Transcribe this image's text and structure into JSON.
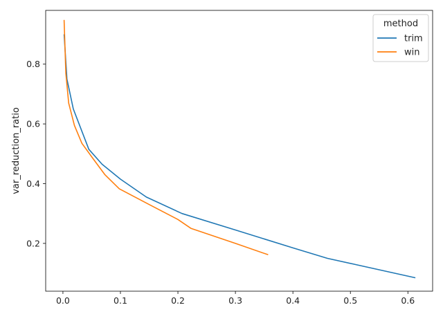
{
  "chart_data": {
    "type": "line",
    "title": "",
    "xlabel": "",
    "ylabel": "var_reduction_ratio",
    "xlim": [
      -0.03,
      0.643
    ],
    "ylim": [
      0.04,
      0.98
    ],
    "x_ticks": [
      0.0,
      0.1,
      0.2,
      0.3,
      0.4,
      0.5,
      0.6
    ],
    "x_tick_labels": [
      "0.0",
      "0.1",
      "0.2",
      "0.3",
      "0.4",
      "0.5",
      "0.6"
    ],
    "y_ticks": [
      0.2,
      0.4,
      0.6,
      0.8
    ],
    "y_tick_labels": [
      "0.2",
      "0.4",
      "0.6",
      "0.8"
    ],
    "grid": false,
    "legend": {
      "title": "method",
      "position": "top-right"
    },
    "series": [
      {
        "name": "trim",
        "color": "#1f77b4",
        "x": [
          0.002,
          0.007,
          0.018,
          0.045,
          0.068,
          0.1,
          0.145,
          0.207,
          0.3,
          0.4,
          0.46,
          0.613
        ],
        "y": [
          0.9,
          0.75,
          0.65,
          0.515,
          0.465,
          0.415,
          0.355,
          0.3,
          0.245,
          0.185,
          0.15,
          0.085
        ]
      },
      {
        "name": "win",
        "color": "#ff7f0e",
        "x": [
          0.002,
          0.005,
          0.01,
          0.02,
          0.033,
          0.05,
          0.073,
          0.098,
          0.15,
          0.2,
          0.223,
          0.3,
          0.357
        ],
        "y": [
          0.948,
          0.77,
          0.67,
          0.595,
          0.535,
          0.49,
          0.43,
          0.383,
          0.33,
          0.28,
          0.25,
          0.2,
          0.162
        ]
      }
    ]
  }
}
